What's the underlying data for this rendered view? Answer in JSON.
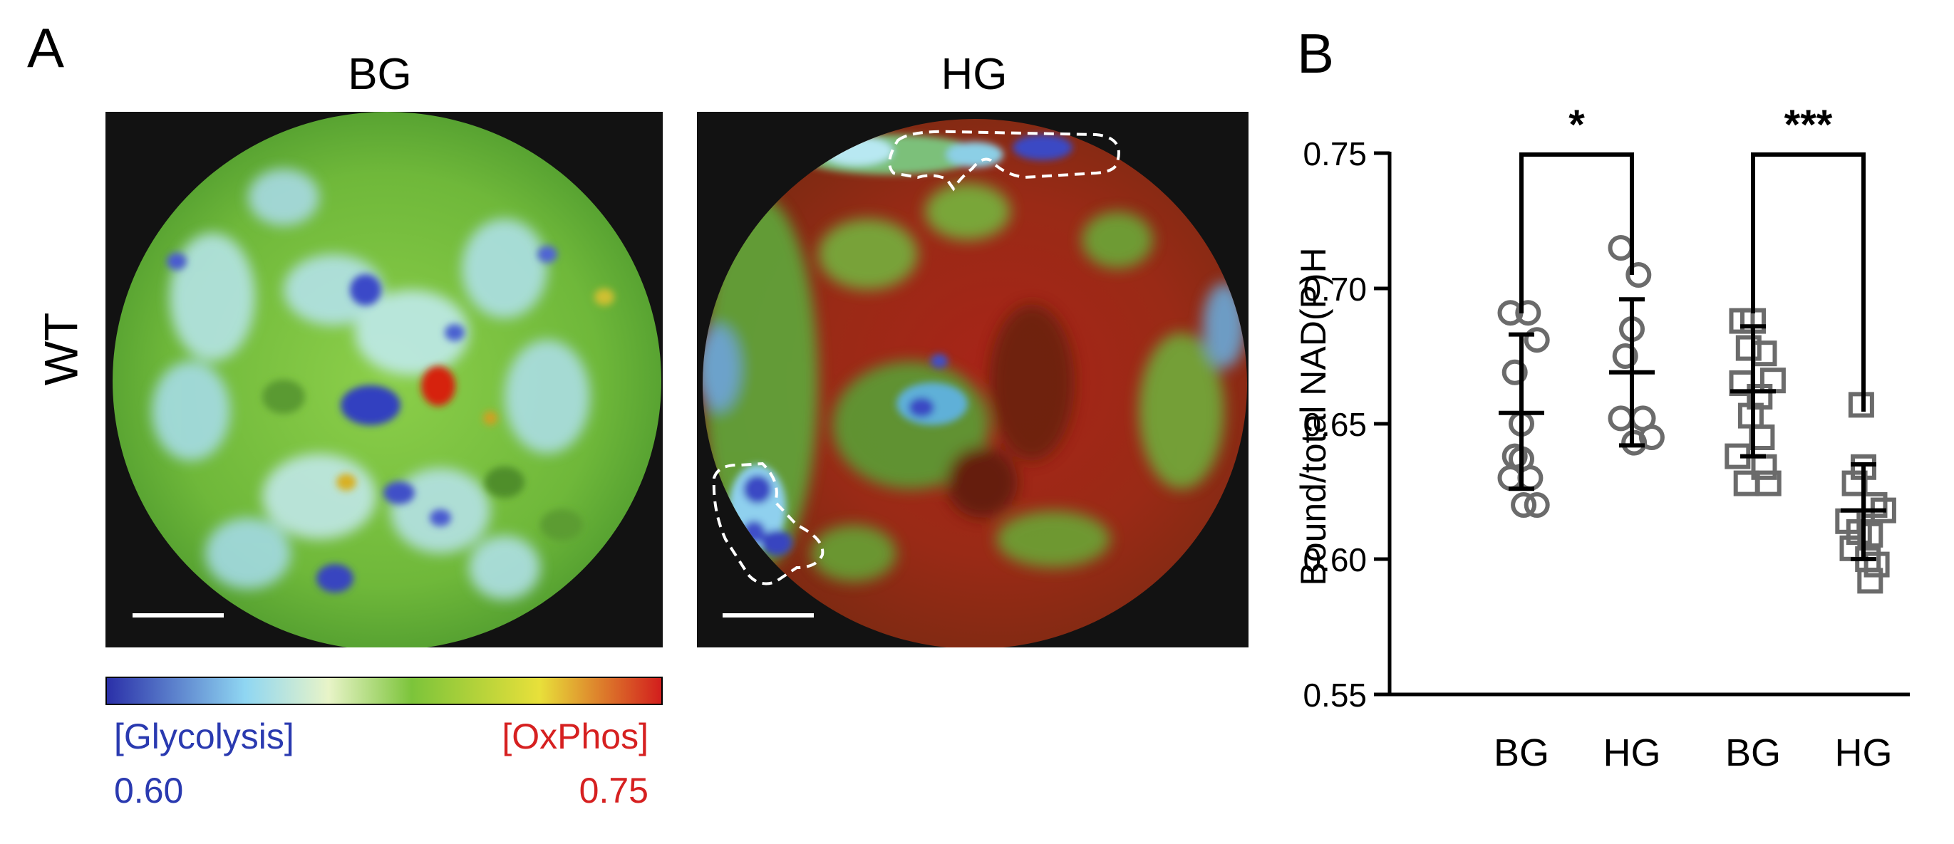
{
  "panel_a": {
    "letter": "A",
    "images": [
      {
        "title": "BG"
      },
      {
        "title": "HG"
      }
    ],
    "row_label": "WT",
    "colorbar": {
      "left_label": "[Glycolysis]",
      "left_value": "0.60",
      "right_label": "[OxPhos]",
      "right_value": "0.75",
      "colors": [
        "#2a2fa8",
        "#8fd6f2",
        "#e8f4c8",
        "#7cc43a",
        "#e8e03a",
        "#d21d1d"
      ],
      "left_color": "#2a3ab0",
      "right_color": "#d62020"
    }
  },
  "panel_b": {
    "letter": "B"
  },
  "chart_data": {
    "type": "scatter",
    "ylabel": "Bound/total NAD(P)H",
    "ylim": [
      0.55,
      0.75
    ],
    "yticks": [
      "0.75",
      "0.70",
      "0.65",
      "0.60",
      "0.55"
    ],
    "categories": [
      "BG",
      "HG",
      "BG",
      "HG"
    ],
    "groups": [
      {
        "category": "BG",
        "marker": "circle",
        "mean": 0.654,
        "err_low": 0.626,
        "err_high": 0.683,
        "points": [
          [
            -0.05,
            0.691
          ],
          [
            0.03,
            0.691
          ],
          [
            0.07,
            0.681
          ],
          [
            -0.03,
            0.669
          ],
          [
            0.0,
            0.65
          ],
          [
            -0.03,
            0.638
          ],
          [
            0.0,
            0.637
          ],
          [
            -0.05,
            0.63
          ],
          [
            0.04,
            0.63
          ],
          [
            0.01,
            0.62
          ],
          [
            0.07,
            0.62
          ]
        ]
      },
      {
        "category": "HG",
        "marker": "circle",
        "mean": 0.669,
        "err_low": 0.642,
        "err_high": 0.696,
        "points": [
          [
            -0.05,
            0.715
          ],
          [
            0.03,
            0.705
          ],
          [
            0.0,
            0.685
          ],
          [
            -0.03,
            0.675
          ],
          [
            -0.05,
            0.652
          ],
          [
            0.05,
            0.652
          ],
          [
            0.01,
            0.643
          ],
          [
            0.09,
            0.645
          ]
        ]
      },
      {
        "category": "BG",
        "marker": "square",
        "mean": 0.662,
        "err_low": 0.638,
        "err_high": 0.686,
        "points": [
          [
            -0.05,
            0.688
          ],
          [
            0.0,
            0.688
          ],
          [
            -0.02,
            0.678
          ],
          [
            0.05,
            0.676
          ],
          [
            0.09,
            0.666
          ],
          [
            -0.05,
            0.665
          ],
          [
            0.03,
            0.66
          ],
          [
            -0.01,
            0.653
          ],
          [
            0.04,
            0.645
          ],
          [
            -0.07,
            0.638
          ],
          [
            0.05,
            0.634
          ],
          [
            -0.03,
            0.628
          ],
          [
            0.07,
            0.628
          ]
        ]
      },
      {
        "category": "HG",
        "marker": "square",
        "mean": 0.618,
        "err_low": 0.6,
        "err_high": 0.635,
        "points": [
          [
            -0.01,
            0.657
          ],
          [
            0.0,
            0.634
          ],
          [
            -0.04,
            0.628
          ],
          [
            0.05,
            0.62
          ],
          [
            0.09,
            0.618
          ],
          [
            -0.07,
            0.614
          ],
          [
            -0.02,
            0.61
          ],
          [
            0.03,
            0.609
          ],
          [
            -0.05,
            0.604
          ],
          [
            0.02,
            0.6
          ],
          [
            0.06,
            0.598
          ],
          [
            0.03,
            0.592
          ]
        ]
      }
    ],
    "significance": [
      {
        "from": 0,
        "to": 1,
        "label": "*"
      },
      {
        "from": 2,
        "to": 3,
        "label": "***"
      }
    ],
    "point_color": "#6b6b6b"
  }
}
